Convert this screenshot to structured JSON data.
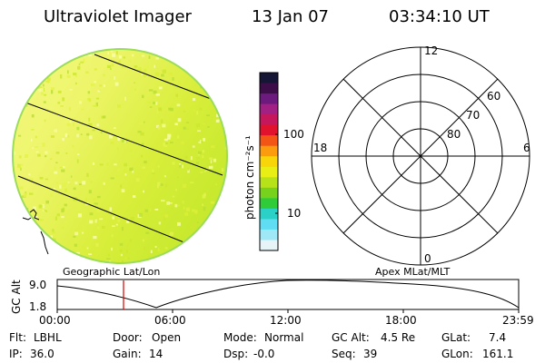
{
  "header": {
    "instrument": "Ultraviolet Imager",
    "date": "13 Jan 07",
    "time": "03:34:10 UT"
  },
  "image_panel": {
    "caption": "Geographic Lat/Lon",
    "colors": {
      "light_yellow": "#f0f76e",
      "mid_yellow": "#d5ef2a",
      "green_edge": "#b7e13a"
    }
  },
  "colorbar": {
    "unit_label": "photon cm⁻²s⁻¹",
    "ticks": [
      "100",
      "10"
    ],
    "colors": [
      "#151535",
      "#3d0d4a",
      "#6d1a7e",
      "#a21f83",
      "#c6175c",
      "#e0122d",
      "#f25515",
      "#fb9b0d",
      "#f8d40a",
      "#e9ef15",
      "#b7e21a",
      "#76d21c",
      "#2fcb3a",
      "#2bd1c6",
      "#61ddf3",
      "#9ee8f7",
      "#e6f4f7"
    ]
  },
  "polar_panel": {
    "caption": "Apex MLat/MLT",
    "mlt_labels": {
      "top": "12",
      "left": "18",
      "right": "6",
      "bottom": "0"
    },
    "lat_labels": [
      "60",
      "70",
      "80"
    ]
  },
  "timeline": {
    "axis_label": "GC Alt",
    "y_ticks": [
      "9.0",
      "1.8"
    ],
    "x_ticks": [
      "00:00",
      "06:00",
      "12:00",
      "18:00",
      "23:59"
    ],
    "marker_color": "#d40000"
  },
  "status": {
    "row1": [
      {
        "label": "Flt:",
        "value": "LBHL"
      },
      {
        "label": "Door:",
        "value": "Open"
      },
      {
        "label": "Mode:",
        "value": "Normal"
      },
      {
        "label": "GC Alt:",
        "value": "4.5 Re"
      },
      {
        "label": "GLat:",
        "value": "7.4"
      }
    ],
    "row2": [
      {
        "label": "IP:",
        "value": "36.0"
      },
      {
        "label": "Gain:",
        "value": "14"
      },
      {
        "label": "Dsp:",
        "value": "-0.0"
      },
      {
        "label": "Seq:",
        "value": "39"
      },
      {
        "label": "GLon:",
        "value": "161.1"
      }
    ]
  }
}
